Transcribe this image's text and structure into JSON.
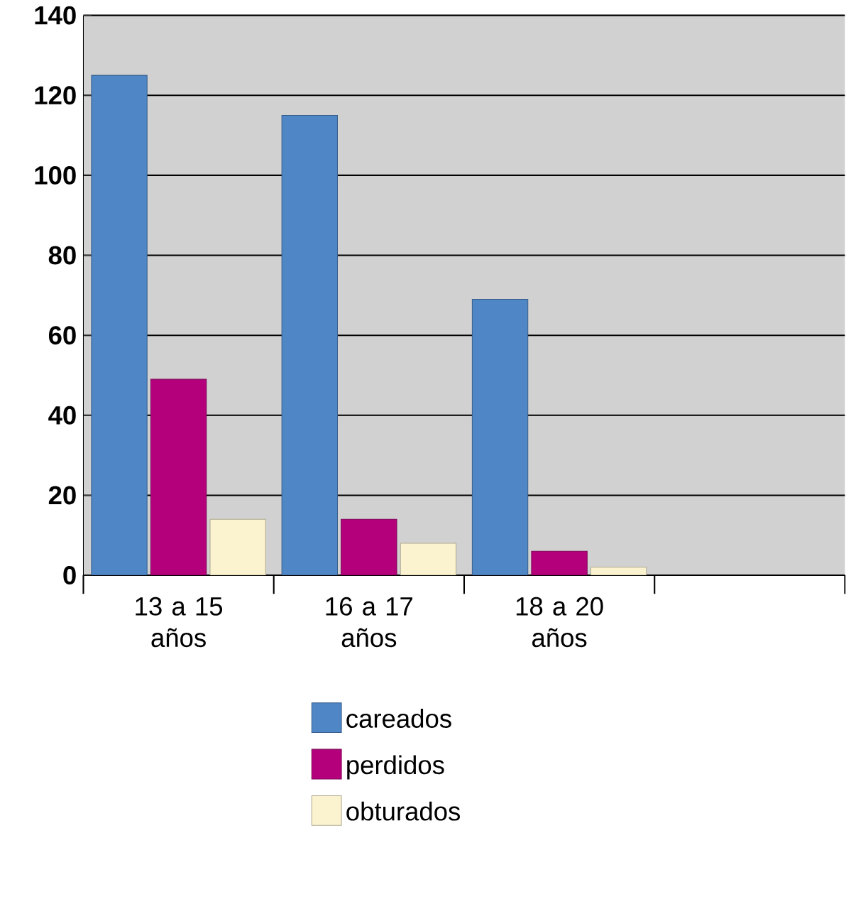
{
  "chart_data": {
    "type": "bar",
    "categories": [
      "13 a 15 años",
      "16 a 17 años",
      "18 a 20 años",
      null
    ],
    "series": [
      {
        "name": "careados",
        "color": "#4f86c6",
        "values": [
          125,
          115,
          69,
          null
        ]
      },
      {
        "name": "perdidos",
        "color": "#b5007c",
        "values": [
          49,
          14,
          6,
          null
        ]
      },
      {
        "name": "obturados",
        "color": "#fbf3cf",
        "values": [
          14,
          8,
          2,
          null
        ]
      }
    ],
    "ylim": [
      0,
      140
    ],
    "yticks": [
      0,
      20,
      40,
      60,
      80,
      100,
      120,
      140
    ],
    "grid": "y",
    "legend": "bottom"
  }
}
